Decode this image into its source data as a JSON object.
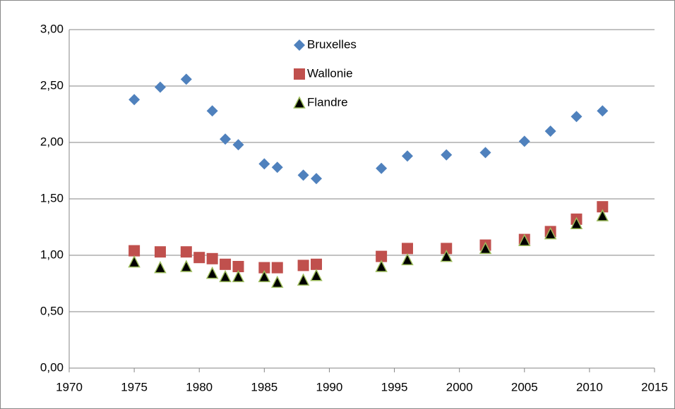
{
  "chart_data": {
    "type": "scatter",
    "xlim": [
      1970,
      2015
    ],
    "xticks": [
      1970,
      1975,
      1980,
      1985,
      1990,
      1995,
      2000,
      2005,
      2010,
      2015
    ],
    "ylim": [
      0,
      3
    ],
    "yticks": [
      {
        "value": 0,
        "label": "0,00"
      },
      {
        "value": 0.5,
        "label": "0,50"
      },
      {
        "value": 1,
        "label": "1,00"
      },
      {
        "value": 1.5,
        "label": "1,50"
      },
      {
        "value": 2,
        "label": "2,00"
      },
      {
        "value": 2.5,
        "label": "2,50"
      },
      {
        "value": 3,
        "label": "3,00"
      }
    ],
    "grid": true,
    "legend": "top",
    "series": [
      {
        "name": "Bruxelles",
        "color": "#4f81bd",
        "marker": "diamond",
        "x": [
          1975,
          1977,
          1979,
          1981,
          1982,
          1983,
          1985,
          1986,
          1988,
          1989,
          1994,
          1996,
          1999,
          2002,
          2005,
          2007,
          2009,
          2011
        ],
        "values": [
          2.38,
          2.49,
          2.56,
          2.28,
          2.03,
          1.98,
          1.81,
          1.78,
          1.71,
          1.68,
          1.77,
          1.88,
          1.89,
          1.91,
          2.01,
          2.1,
          2.23,
          2.28
        ]
      },
      {
        "name": "Wallonie",
        "color": "#c0504d",
        "marker": "square",
        "x": [
          1975,
          1977,
          1979,
          1980,
          1981,
          1982,
          1983,
          1985,
          1986,
          1988,
          1989,
          1994,
          1996,
          1999,
          2002,
          2005,
          2007,
          2009,
          2011
        ],
        "values": [
          1.04,
          1.03,
          1.03,
          0.98,
          0.97,
          0.92,
          0.9,
          0.89,
          0.89,
          0.91,
          0.92,
          0.99,
          1.06,
          1.06,
          1.09,
          1.14,
          1.21,
          1.32,
          1.43
        ]
      },
      {
        "name": "Flandre",
        "color": "#000000",
        "edgecolor": "#9bbb59",
        "marker": "triangle",
        "x": [
          1975,
          1977,
          1979,
          1981,
          1982,
          1983,
          1985,
          1986,
          1988,
          1989,
          1994,
          1996,
          1999,
          2002,
          2005,
          2007,
          2009,
          2011
        ],
        "values": [
          0.94,
          0.89,
          0.9,
          0.84,
          0.81,
          0.81,
          0.81,
          0.76,
          0.78,
          0.82,
          0.9,
          0.96,
          0.99,
          1.06,
          1.13,
          1.19,
          1.28,
          1.35
        ]
      }
    ]
  }
}
